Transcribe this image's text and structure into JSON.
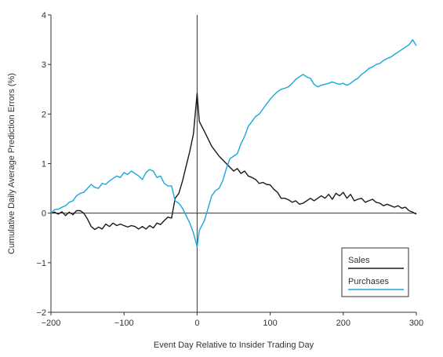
{
  "chart_data": {
    "type": "line",
    "xlabel": "Event Day Relative to Insider Trading Day",
    "ylabel": "Cumulative Daily Average Prediction Errors (%)",
    "xlim": [
      -200,
      300
    ],
    "ylim": [
      -2,
      4
    ],
    "xticks": [
      {
        "value": -200,
        "label": "−200"
      },
      {
        "value": -100,
        "label": "−100"
      },
      {
        "value": 0,
        "label": "0"
      },
      {
        "value": 100,
        "label": "100"
      },
      {
        "value": 200,
        "label": "200"
      },
      {
        "value": 300,
        "label": "300"
      }
    ],
    "yticks": [
      {
        "value": -2,
        "label": "−2"
      },
      {
        "value": -1,
        "label": "−1"
      },
      {
        "value": 0,
        "label": "0"
      },
      {
        "value": 1,
        "label": "1"
      },
      {
        "value": 2,
        "label": "2"
      },
      {
        "value": 3,
        "label": "3"
      },
      {
        "value": 4,
        "label": "4"
      }
    ],
    "reference_lines": {
      "x": 0,
      "y": 0
    },
    "grid": false,
    "legend": {
      "placement": "bottom-right",
      "boxed": true
    },
    "series": [
      {
        "name": "Sales",
        "color": "#1a1a1a",
        "points": [
          [
            -200,
            0.0
          ],
          [
            -195,
            0.02
          ],
          [
            -190,
            -0.02
          ],
          [
            -185,
            0.03
          ],
          [
            -180,
            -0.05
          ],
          [
            -175,
            0.02
          ],
          [
            -170,
            -0.03
          ],
          [
            -165,
            0.05
          ],
          [
            -160,
            0.05
          ],
          [
            -155,
            0.0
          ],
          [
            -150,
            -0.12
          ],
          [
            -145,
            -0.27
          ],
          [
            -140,
            -0.33
          ],
          [
            -135,
            -0.28
          ],
          [
            -130,
            -0.32
          ],
          [
            -125,
            -0.22
          ],
          [
            -120,
            -0.27
          ],
          [
            -115,
            -0.2
          ],
          [
            -110,
            -0.25
          ],
          [
            -105,
            -0.22
          ],
          [
            -100,
            -0.25
          ],
          [
            -95,
            -0.28
          ],
          [
            -90,
            -0.25
          ],
          [
            -85,
            -0.27
          ],
          [
            -80,
            -0.32
          ],
          [
            -75,
            -0.27
          ],
          [
            -70,
            -0.32
          ],
          [
            -65,
            -0.25
          ],
          [
            -60,
            -0.3
          ],
          [
            -55,
            -0.2
          ],
          [
            -50,
            -0.23
          ],
          [
            -45,
            -0.15
          ],
          [
            -40,
            -0.08
          ],
          [
            -35,
            -0.1
          ],
          [
            -30,
            0.3
          ],
          [
            -25,
            0.4
          ],
          [
            -20,
            0.65
          ],
          [
            -15,
            0.95
          ],
          [
            -10,
            1.25
          ],
          [
            -5,
            1.6
          ],
          [
            0,
            2.42
          ],
          [
            3,
            1.85
          ],
          [
            10,
            1.65
          ],
          [
            20,
            1.35
          ],
          [
            30,
            1.15
          ],
          [
            40,
            1.0
          ],
          [
            50,
            0.85
          ],
          [
            55,
            0.9
          ],
          [
            60,
            0.8
          ],
          [
            65,
            0.85
          ],
          [
            70,
            0.75
          ],
          [
            75,
            0.72
          ],
          [
            80,
            0.68
          ],
          [
            85,
            0.6
          ],
          [
            90,
            0.62
          ],
          [
            95,
            0.58
          ],
          [
            100,
            0.57
          ],
          [
            105,
            0.48
          ],
          [
            110,
            0.42
          ],
          [
            115,
            0.3
          ],
          [
            120,
            0.3
          ],
          [
            125,
            0.27
          ],
          [
            130,
            0.22
          ],
          [
            135,
            0.25
          ],
          [
            140,
            0.18
          ],
          [
            145,
            0.2
          ],
          [
            150,
            0.25
          ],
          [
            155,
            0.3
          ],
          [
            160,
            0.25
          ],
          [
            165,
            0.3
          ],
          [
            170,
            0.35
          ],
          [
            175,
            0.3
          ],
          [
            180,
            0.38
          ],
          [
            185,
            0.28
          ],
          [
            190,
            0.4
          ],
          [
            195,
            0.35
          ],
          [
            200,
            0.42
          ],
          [
            205,
            0.3
          ],
          [
            210,
            0.38
          ],
          [
            215,
            0.25
          ],
          [
            220,
            0.28
          ],
          [
            225,
            0.3
          ],
          [
            230,
            0.22
          ],
          [
            235,
            0.25
          ],
          [
            240,
            0.28
          ],
          [
            245,
            0.22
          ],
          [
            250,
            0.2
          ],
          [
            255,
            0.15
          ],
          [
            260,
            0.18
          ],
          [
            265,
            0.15
          ],
          [
            270,
            0.12
          ],
          [
            275,
            0.15
          ],
          [
            280,
            0.1
          ],
          [
            285,
            0.12
          ],
          [
            290,
            0.05
          ],
          [
            295,
            0.02
          ],
          [
            300,
            -0.02
          ]
        ]
      },
      {
        "name": "Purchases",
        "color": "#1aa6dc",
        "points": [
          [
            -200,
            0.0
          ],
          [
            -195,
            0.07
          ],
          [
            -190,
            0.08
          ],
          [
            -185,
            0.12
          ],
          [
            -180,
            0.15
          ],
          [
            -175,
            0.22
          ],
          [
            -170,
            0.25
          ],
          [
            -165,
            0.35
          ],
          [
            -160,
            0.4
          ],
          [
            -155,
            0.42
          ],
          [
            -150,
            0.5
          ],
          [
            -145,
            0.58
          ],
          [
            -140,
            0.52
          ],
          [
            -135,
            0.5
          ],
          [
            -130,
            0.6
          ],
          [
            -125,
            0.58
          ],
          [
            -120,
            0.65
          ],
          [
            -115,
            0.7
          ],
          [
            -110,
            0.75
          ],
          [
            -105,
            0.72
          ],
          [
            -100,
            0.82
          ],
          [
            -95,
            0.78
          ],
          [
            -90,
            0.85
          ],
          [
            -85,
            0.8
          ],
          [
            -80,
            0.75
          ],
          [
            -75,
            0.68
          ],
          [
            -70,
            0.82
          ],
          [
            -65,
            0.88
          ],
          [
            -60,
            0.85
          ],
          [
            -55,
            0.72
          ],
          [
            -50,
            0.75
          ],
          [
            -45,
            0.6
          ],
          [
            -40,
            0.55
          ],
          [
            -35,
            0.55
          ],
          [
            -30,
            0.25
          ],
          [
            -25,
            0.2
          ],
          [
            -20,
            0.1
          ],
          [
            -15,
            -0.05
          ],
          [
            -10,
            -0.2
          ],
          [
            -5,
            -0.4
          ],
          [
            0,
            -0.68
          ],
          [
            3,
            -0.35
          ],
          [
            10,
            -0.15
          ],
          [
            15,
            0.1
          ],
          [
            20,
            0.35
          ],
          [
            25,
            0.45
          ],
          [
            30,
            0.5
          ],
          [
            35,
            0.65
          ],
          [
            40,
            0.9
          ],
          [
            45,
            1.1
          ],
          [
            50,
            1.15
          ],
          [
            55,
            1.2
          ],
          [
            60,
            1.4
          ],
          [
            65,
            1.55
          ],
          [
            70,
            1.75
          ],
          [
            75,
            1.85
          ],
          [
            80,
            1.95
          ],
          [
            85,
            2.0
          ],
          [
            90,
            2.1
          ],
          [
            95,
            2.2
          ],
          [
            100,
            2.3
          ],
          [
            105,
            2.38
          ],
          [
            110,
            2.45
          ],
          [
            115,
            2.5
          ],
          [
            120,
            2.52
          ],
          [
            125,
            2.55
          ],
          [
            130,
            2.62
          ],
          [
            135,
            2.7
          ],
          [
            140,
            2.75
          ],
          [
            145,
            2.8
          ],
          [
            150,
            2.75
          ],
          [
            155,
            2.72
          ],
          [
            160,
            2.6
          ],
          [
            165,
            2.55
          ],
          [
            170,
            2.58
          ],
          [
            175,
            2.6
          ],
          [
            180,
            2.62
          ],
          [
            185,
            2.65
          ],
          [
            190,
            2.62
          ],
          [
            195,
            2.6
          ],
          [
            200,
            2.62
          ],
          [
            205,
            2.58
          ],
          [
            210,
            2.62
          ],
          [
            215,
            2.68
          ],
          [
            220,
            2.72
          ],
          [
            225,
            2.8
          ],
          [
            230,
            2.85
          ],
          [
            235,
            2.92
          ],
          [
            240,
            2.95
          ],
          [
            245,
            3.0
          ],
          [
            250,
            3.02
          ],
          [
            255,
            3.08
          ],
          [
            260,
            3.12
          ],
          [
            265,
            3.15
          ],
          [
            270,
            3.2
          ],
          [
            275,
            3.25
          ],
          [
            280,
            3.3
          ],
          [
            285,
            3.35
          ],
          [
            290,
            3.4
          ],
          [
            295,
            3.5
          ],
          [
            300,
            3.38
          ]
        ]
      }
    ]
  }
}
